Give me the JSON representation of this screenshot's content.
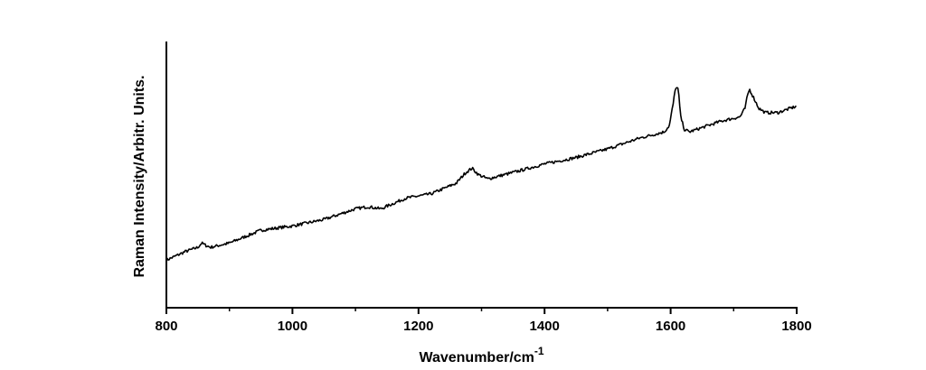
{
  "chart_data": {
    "type": "line",
    "title": "",
    "xlabel": "Wavenumber/cm",
    "xlabel_superscript": "-1",
    "ylabel": "Raman Intensity/Arbitr. Units.",
    "xlim": [
      800,
      1800
    ],
    "ylim": [
      0,
      100
    ],
    "x_ticks": [
      800,
      1000,
      1200,
      1400,
      1600,
      1800
    ],
    "x_tick_labels": [
      "800",
      "1000",
      "1200",
      "1400",
      "1600",
      "1800"
    ],
    "y_tick_labels_shown": false,
    "grid": false,
    "legend": "none",
    "line_color": "#000000",
    "series": [
      {
        "x": [
          800,
          830,
          850,
          856,
          862,
          870,
          900,
          950,
          1000,
          1050,
          1080,
          1100,
          1120,
          1140,
          1180,
          1220,
          1260,
          1275,
          1285,
          1295,
          1310,
          1350,
          1400,
          1450,
          1500,
          1550,
          1590,
          1598,
          1604,
          1608,
          1612,
          1616,
          1622,
          1630,
          1650,
          1680,
          1710,
          1718,
          1722,
          1725,
          1730,
          1740,
          1750,
          1770,
          1800
        ],
        "values": [
          10,
          14,
          16,
          18,
          17,
          16,
          18,
          24,
          26,
          29,
          32,
          34,
          35,
          34,
          39,
          41,
          46,
          51,
          53,
          50,
          48,
          51,
          55,
          58,
          62,
          67,
          70,
          73,
          83,
          91,
          90,
          77,
          71,
          70,
          72,
          75,
          77,
          81,
          87,
          90,
          87,
          81,
          79,
          79,
          82
        ]
      }
    ]
  }
}
